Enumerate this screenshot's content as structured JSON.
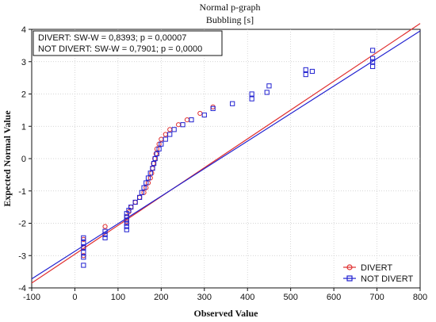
{
  "chart_data": {
    "type": "scatter",
    "title": "Normal p-graph",
    "subtitle": "Bubbling [s]",
    "xlabel": "Observed Value",
    "ylabel": "Expected Normal Value",
    "xlim": [
      -100,
      800
    ],
    "ylim": [
      -4,
      4
    ],
    "x_ticks": [
      "-100",
      "0",
      "100",
      "200",
      "300",
      "400",
      "500",
      "600",
      "700",
      "800"
    ],
    "y_ticks": [
      "-4",
      "-3",
      "-2",
      "-1",
      "0",
      "1",
      "2",
      "3",
      "4"
    ],
    "grid": true,
    "legend_position": "bottom-right",
    "stats_box": {
      "line1": "DIVERT:  SW-W = 0,8393; p = 0,00007",
      "line2": "NOT DIVERT:  SW-W = 0,7901; p = 0,0000"
    },
    "series": [
      {
        "name": "DIVERT",
        "marker": "circle",
        "color": "#e03030",
        "fit_line": {
          "x": [
            -100,
            800
          ],
          "y": [
            -3.85,
            4.18
          ]
        },
        "points": [
          {
            "x": 20,
            "y": -2.5
          },
          {
            "x": 20,
            "y": -2.75
          },
          {
            "x": 20,
            "y": -3.0
          },
          {
            "x": 70,
            "y": -2.1
          },
          {
            "x": 120,
            "y": -1.95
          },
          {
            "x": 120,
            "y": -1.8
          },
          {
            "x": 125,
            "y": -1.65
          },
          {
            "x": 130,
            "y": -1.5
          },
          {
            "x": 140,
            "y": -1.35
          },
          {
            "x": 150,
            "y": -1.2
          },
          {
            "x": 160,
            "y": -1.05
          },
          {
            "x": 165,
            "y": -0.9
          },
          {
            "x": 170,
            "y": -0.75
          },
          {
            "x": 175,
            "y": -0.6
          },
          {
            "x": 178,
            "y": -0.45
          },
          {
            "x": 180,
            "y": -0.3
          },
          {
            "x": 182,
            "y": -0.15
          },
          {
            "x": 185,
            "y": 0.0
          },
          {
            "x": 188,
            "y": 0.15
          },
          {
            "x": 190,
            "y": 0.3
          },
          {
            "x": 195,
            "y": 0.45
          },
          {
            "x": 200,
            "y": 0.6
          },
          {
            "x": 210,
            "y": 0.75
          },
          {
            "x": 220,
            "y": 0.9
          },
          {
            "x": 240,
            "y": 1.05
          },
          {
            "x": 260,
            "y": 1.2
          },
          {
            "x": 290,
            "y": 1.4
          },
          {
            "x": 320,
            "y": 1.6
          }
        ]
      },
      {
        "name": "NOT DIVERT",
        "marker": "square",
        "color": "#2020d0",
        "fit_line": {
          "x": [
            -100,
            800
          ],
          "y": [
            -3.72,
            3.95
          ]
        },
        "points": [
          {
            "x": 20,
            "y": -2.45
          },
          {
            "x": 20,
            "y": -2.6
          },
          {
            "x": 20,
            "y": -2.75
          },
          {
            "x": 20,
            "y": -2.9
          },
          {
            "x": 20,
            "y": -3.05
          },
          {
            "x": 20,
            "y": -3.3
          },
          {
            "x": 70,
            "y": -2.25
          },
          {
            "x": 70,
            "y": -2.35
          },
          {
            "x": 70,
            "y": -2.45
          },
          {
            "x": 120,
            "y": -1.7
          },
          {
            "x": 120,
            "y": -1.8
          },
          {
            "x": 120,
            "y": -1.9
          },
          {
            "x": 120,
            "y": -2.0
          },
          {
            "x": 120,
            "y": -2.1
          },
          {
            "x": 120,
            "y": -2.2
          },
          {
            "x": 125,
            "y": -1.6
          },
          {
            "x": 130,
            "y": -1.5
          },
          {
            "x": 140,
            "y": -1.35
          },
          {
            "x": 150,
            "y": -1.2
          },
          {
            "x": 155,
            "y": -1.05
          },
          {
            "x": 160,
            "y": -0.9
          },
          {
            "x": 165,
            "y": -0.75
          },
          {
            "x": 170,
            "y": -0.6
          },
          {
            "x": 175,
            "y": -0.45
          },
          {
            "x": 180,
            "y": -0.3
          },
          {
            "x": 183,
            "y": -0.15
          },
          {
            "x": 186,
            "y": 0.0
          },
          {
            "x": 190,
            "y": 0.15
          },
          {
            "x": 195,
            "y": 0.3
          },
          {
            "x": 200,
            "y": 0.45
          },
          {
            "x": 210,
            "y": 0.6
          },
          {
            "x": 220,
            "y": 0.75
          },
          {
            "x": 230,
            "y": 0.9
          },
          {
            "x": 250,
            "y": 1.05
          },
          {
            "x": 270,
            "y": 1.2
          },
          {
            "x": 300,
            "y": 1.35
          },
          {
            "x": 320,
            "y": 1.55
          },
          {
            "x": 365,
            "y": 1.7
          },
          {
            "x": 410,
            "y": 1.85
          },
          {
            "x": 410,
            "y": 2.0
          },
          {
            "x": 445,
            "y": 2.05
          },
          {
            "x": 450,
            "y": 2.25
          },
          {
            "x": 535,
            "y": 2.6
          },
          {
            "x": 535,
            "y": 2.75
          },
          {
            "x": 550,
            "y": 2.7
          },
          {
            "x": 690,
            "y": 2.85
          },
          {
            "x": 690,
            "y": 3.0
          },
          {
            "x": 690,
            "y": 3.1
          },
          {
            "x": 690,
            "y": 3.35
          }
        ]
      }
    ]
  }
}
